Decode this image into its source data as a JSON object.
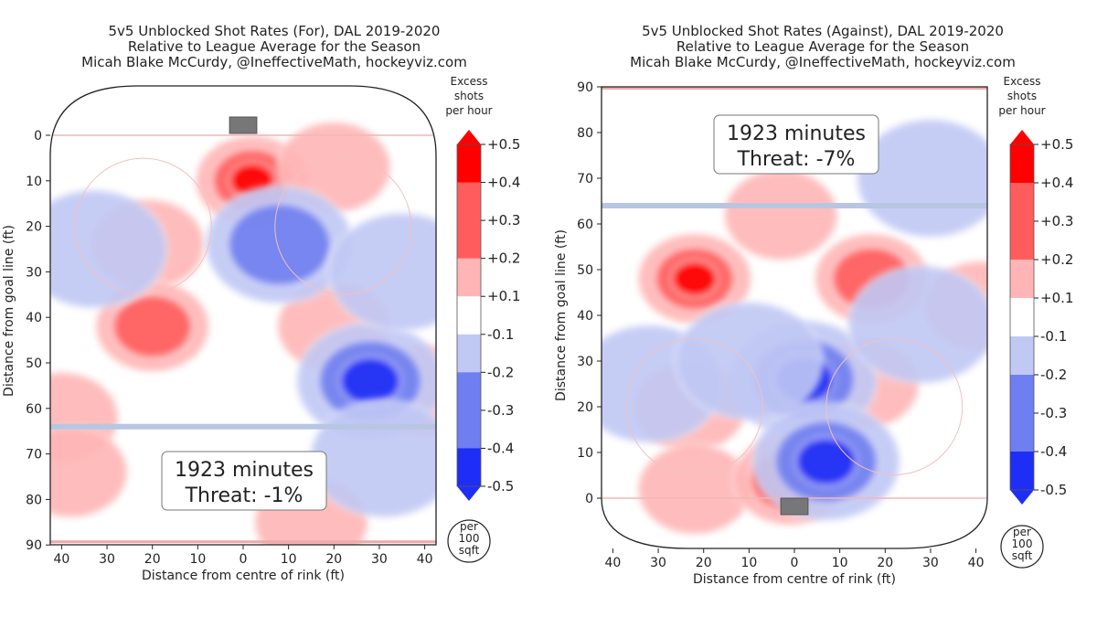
{
  "colors": {
    "red_strong": "#ff0000",
    "red_mid": "#ff5d5d",
    "red_light": "#ffb5b5",
    "white": "#ffffff",
    "blue_light": "#c0c8f4",
    "blue_mid": "#6f7ef0",
    "blue_strong": "#1e2ef5",
    "goal_line": "#f3b6b6",
    "blue_line": "#b8c6e3",
    "net": "#777777"
  },
  "colorbar": {
    "header": [
      "Excess",
      "shots",
      "per hour"
    ],
    "labels": [
      "+0.5",
      "+0.4",
      "+0.3",
      "+0.2",
      "+0.1",
      "-0.1",
      "-0.2",
      "-0.3",
      "-0.4",
      "-0.5"
    ],
    "units": [
      "per",
      "100",
      "sqft"
    ]
  },
  "chart_data": [
    {
      "type": "heatmap",
      "title": [
        "5v5 Unblocked Shot Rates (For), DAL 2019-2020",
        "Relative to League Average for the Season",
        "Micah Blake McCurdy, @IneffectiveMath, hockeyviz.com"
      ],
      "xlabel": "Distance from centre of rink (ft)",
      "ylabel": "Distance from goal line (ft)",
      "x_ticks": [
        "40",
        "30",
        "20",
        "10",
        "0",
        "10",
        "20",
        "30",
        "40"
      ],
      "y_ticks": [
        "0",
        "10",
        "20",
        "30",
        "40",
        "50",
        "60",
        "70",
        "80",
        "90"
      ],
      "y_direction": "down",
      "annotation": [
        "1923 minutes",
        "Threat: -1%"
      ],
      "blobs": [
        {
          "x": 2,
          "y": 10,
          "level": 0.45
        },
        {
          "x": 20,
          "y": 7,
          "level": 0.2
        },
        {
          "x": -21,
          "y": 24,
          "level": 0.2
        },
        {
          "x": -20,
          "y": 42,
          "level": 0.25
        },
        {
          "x": 20,
          "y": 42,
          "level": 0.2
        },
        {
          "x": -40,
          "y": 62,
          "level": 0.15
        },
        {
          "x": 15,
          "y": 85,
          "level": 0.15
        },
        {
          "x": 40,
          "y": 56,
          "level": 0.15
        },
        {
          "x": -38,
          "y": 74,
          "level": 0.15
        },
        {
          "x": 8,
          "y": 24,
          "level": -0.35
        },
        {
          "x": 28,
          "y": 54,
          "level": -0.5
        },
        {
          "x": -33,
          "y": 25,
          "level": -0.15
        },
        {
          "x": 35,
          "y": 30,
          "level": -0.15
        },
        {
          "x": 31,
          "y": 71,
          "level": -0.15
        }
      ]
    },
    {
      "type": "heatmap",
      "title": [
        "5v5 Unblocked Shot Rates (Against), DAL 2019-2020",
        "Relative to League Average for the Season",
        "Micah Blake McCurdy, @IneffectiveMath, hockeyviz.com"
      ],
      "xlabel": "Distance from centre of rink (ft)",
      "ylabel": "Distance from goal line (ft)",
      "x_ticks": [
        "40",
        "30",
        "20",
        "10",
        "0",
        "10",
        "20",
        "30",
        "40"
      ],
      "y_ticks": [
        "0",
        "10",
        "20",
        "30",
        "40",
        "50",
        "60",
        "70",
        "80",
        "90"
      ],
      "y_direction": "up",
      "annotation": [
        "1923 minutes",
        "Threat: -7%"
      ],
      "blobs": [
        {
          "x": -22,
          "y": 48,
          "level": 0.5
        },
        {
          "x": 17,
          "y": 48,
          "level": 0.35
        },
        {
          "x": -3,
          "y": 62,
          "level": 0.1
        },
        {
          "x": 15,
          "y": 25,
          "level": 0.15
        },
        {
          "x": -23,
          "y": 20,
          "level": 0.15
        },
        {
          "x": -22,
          "y": 2,
          "level": 0.15
        },
        {
          "x": -1,
          "y": 4,
          "level": 0.25
        },
        {
          "x": 41,
          "y": 42,
          "level": 0.15
        },
        {
          "x": 2,
          "y": 26,
          "level": -0.4
        },
        {
          "x": 7,
          "y": 8,
          "level": -0.4
        },
        {
          "x": -32,
          "y": 25,
          "level": -0.15
        },
        {
          "x": 28,
          "y": 38,
          "level": -0.15
        },
        {
          "x": 30,
          "y": 70,
          "level": -0.15
        },
        {
          "x": -10,
          "y": 30,
          "level": -0.15
        }
      ]
    }
  ]
}
